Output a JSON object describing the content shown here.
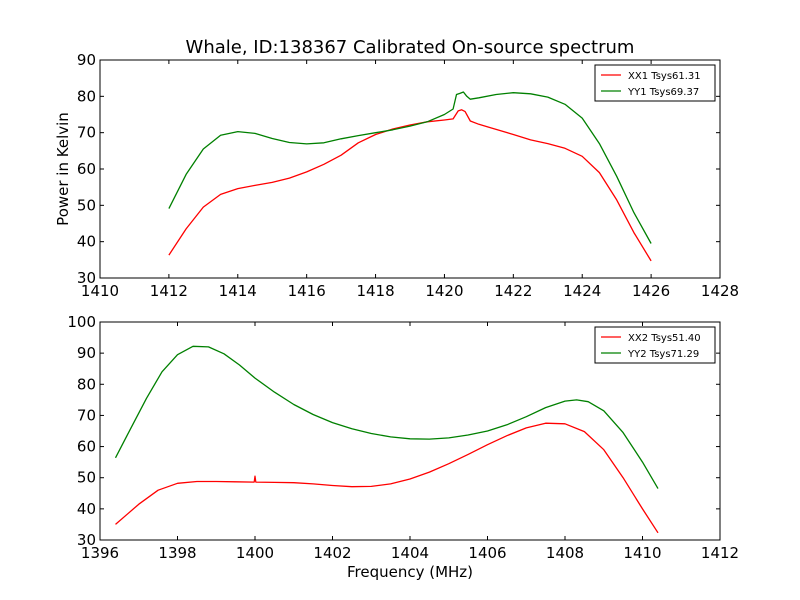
{
  "figure": {
    "title": "Whale, ID:138367 Calibrated On-source spectrum",
    "ylabel": "Power in Kelvin",
    "xlabel": "Frequency (MHz)"
  },
  "chart_data": [
    {
      "type": "line",
      "xlim": [
        1410,
        1428
      ],
      "ylim": [
        30,
        90
      ],
      "xticks": [
        1410,
        1412,
        1414,
        1416,
        1418,
        1420,
        1422,
        1424,
        1426,
        1428
      ],
      "yticks": [
        30,
        40,
        50,
        60,
        70,
        80,
        90
      ],
      "grid": false,
      "legend_position": "top-right",
      "series": [
        {
          "name": "XX1 Tsys61.31",
          "color": "#ff0000",
          "points": [
            [
              1412.0,
              36.3
            ],
            [
              1412.5,
              43.5
            ],
            [
              1413.0,
              49.5
            ],
            [
              1413.5,
              53.0
            ],
            [
              1414.0,
              54.6
            ],
            [
              1414.5,
              55.5
            ],
            [
              1415.0,
              56.3
            ],
            [
              1415.5,
              57.5
            ],
            [
              1416.0,
              59.2
            ],
            [
              1416.5,
              61.3
            ],
            [
              1417.0,
              63.8
            ],
            [
              1417.5,
              67.2
            ],
            [
              1418.0,
              69.5
            ],
            [
              1418.5,
              71.0
            ],
            [
              1419.0,
              72.1
            ],
            [
              1419.5,
              73.0
            ],
            [
              1420.0,
              73.5
            ],
            [
              1420.25,
              73.8
            ],
            [
              1420.4,
              76.0
            ],
            [
              1420.5,
              76.3
            ],
            [
              1420.6,
              75.8
            ],
            [
              1420.75,
              73.2
            ],
            [
              1421.0,
              72.3
            ],
            [
              1421.5,
              70.9
            ],
            [
              1422.0,
              69.5
            ],
            [
              1422.5,
              68.0
            ],
            [
              1423.0,
              67.0
            ],
            [
              1423.5,
              65.7
            ],
            [
              1424.0,
              63.5
            ],
            [
              1424.5,
              59.0
            ],
            [
              1425.0,
              51.5
            ],
            [
              1425.5,
              42.5
            ],
            [
              1426.0,
              34.7
            ]
          ]
        },
        {
          "name": "YY1 Tsys69.37",
          "color": "#008000",
          "points": [
            [
              1412.0,
              49.1
            ],
            [
              1412.5,
              58.5
            ],
            [
              1413.0,
              65.5
            ],
            [
              1413.5,
              69.3
            ],
            [
              1414.0,
              70.3
            ],
            [
              1414.5,
              69.8
            ],
            [
              1415.0,
              68.4
            ],
            [
              1415.5,
              67.3
            ],
            [
              1416.0,
              66.9
            ],
            [
              1416.5,
              67.2
            ],
            [
              1417.0,
              68.3
            ],
            [
              1417.5,
              69.2
            ],
            [
              1418.0,
              70.0
            ],
            [
              1418.5,
              70.8
            ],
            [
              1419.0,
              71.8
            ],
            [
              1419.5,
              73.0
            ],
            [
              1420.0,
              75.0
            ],
            [
              1420.25,
              76.5
            ],
            [
              1420.35,
              80.5
            ],
            [
              1420.45,
              80.8
            ],
            [
              1420.55,
              81.2
            ],
            [
              1420.65,
              80.0
            ],
            [
              1420.75,
              79.2
            ],
            [
              1421.0,
              79.6
            ],
            [
              1421.5,
              80.5
            ],
            [
              1422.0,
              81.0
            ],
            [
              1422.5,
              80.7
            ],
            [
              1423.0,
              79.8
            ],
            [
              1423.5,
              77.8
            ],
            [
              1424.0,
              74.0
            ],
            [
              1424.5,
              67.0
            ],
            [
              1425.0,
              58.0
            ],
            [
              1425.5,
              48.0
            ],
            [
              1426.0,
              39.5
            ]
          ]
        }
      ]
    },
    {
      "type": "line",
      "xlim": [
        1396,
        1412
      ],
      "ylim": [
        30,
        100
      ],
      "xticks": [
        1396,
        1398,
        1400,
        1402,
        1404,
        1406,
        1408,
        1410,
        1412
      ],
      "yticks": [
        30,
        40,
        50,
        60,
        70,
        80,
        90,
        100
      ],
      "grid": false,
      "legend_position": "top-right",
      "series": [
        {
          "name": "XX2 Tsys51.40",
          "color": "#ff0000",
          "points": [
            [
              1396.4,
              35.0
            ],
            [
              1397.0,
              41.5
            ],
            [
              1397.5,
              46.0
            ],
            [
              1398.0,
              48.2
            ],
            [
              1398.5,
              48.8
            ],
            [
              1399.0,
              48.8
            ],
            [
              1399.5,
              48.7
            ],
            [
              1399.98,
              48.6
            ],
            [
              1400.0,
              50.5
            ],
            [
              1400.02,
              48.6
            ],
            [
              1400.5,
              48.5
            ],
            [
              1401.0,
              48.4
            ],
            [
              1401.5,
              48.0
            ],
            [
              1402.0,
              47.5
            ],
            [
              1402.5,
              47.1
            ],
            [
              1403.0,
              47.2
            ],
            [
              1403.5,
              48.0
            ],
            [
              1404.0,
              49.6
            ],
            [
              1404.5,
              51.8
            ],
            [
              1405.0,
              54.5
            ],
            [
              1405.5,
              57.5
            ],
            [
              1406.0,
              60.6
            ],
            [
              1406.5,
              63.5
            ],
            [
              1407.0,
              66.0
            ],
            [
              1407.5,
              67.5
            ],
            [
              1408.0,
              67.3
            ],
            [
              1408.5,
              64.8
            ],
            [
              1409.0,
              59.0
            ],
            [
              1409.5,
              50.0
            ],
            [
              1410.0,
              40.0
            ],
            [
              1410.4,
              32.3
            ]
          ]
        },
        {
          "name": "YY2 Tsys71.29",
          "color": "#008000",
          "points": [
            [
              1396.4,
              56.4
            ],
            [
              1396.8,
              66.0
            ],
            [
              1397.2,
              75.5
            ],
            [
              1397.6,
              84.0
            ],
            [
              1398.0,
              89.5
            ],
            [
              1398.4,
              92.2
            ],
            [
              1398.8,
              92.0
            ],
            [
              1399.2,
              89.8
            ],
            [
              1399.6,
              86.2
            ],
            [
              1400.0,
              82.0
            ],
            [
              1400.5,
              77.5
            ],
            [
              1401.0,
              73.5
            ],
            [
              1401.5,
              70.3
            ],
            [
              1402.0,
              67.7
            ],
            [
              1402.5,
              65.7
            ],
            [
              1403.0,
              64.2
            ],
            [
              1403.5,
              63.1
            ],
            [
              1404.0,
              62.5
            ],
            [
              1404.5,
              62.4
            ],
            [
              1405.0,
              62.8
            ],
            [
              1405.5,
              63.7
            ],
            [
              1406.0,
              65.0
            ],
            [
              1406.5,
              67.0
            ],
            [
              1407.0,
              69.6
            ],
            [
              1407.5,
              72.5
            ],
            [
              1408.0,
              74.6
            ],
            [
              1408.3,
              75.0
            ],
            [
              1408.6,
              74.4
            ],
            [
              1409.0,
              71.5
            ],
            [
              1409.5,
              64.5
            ],
            [
              1410.0,
              55.0
            ],
            [
              1410.4,
              46.5
            ]
          ]
        }
      ]
    }
  ]
}
